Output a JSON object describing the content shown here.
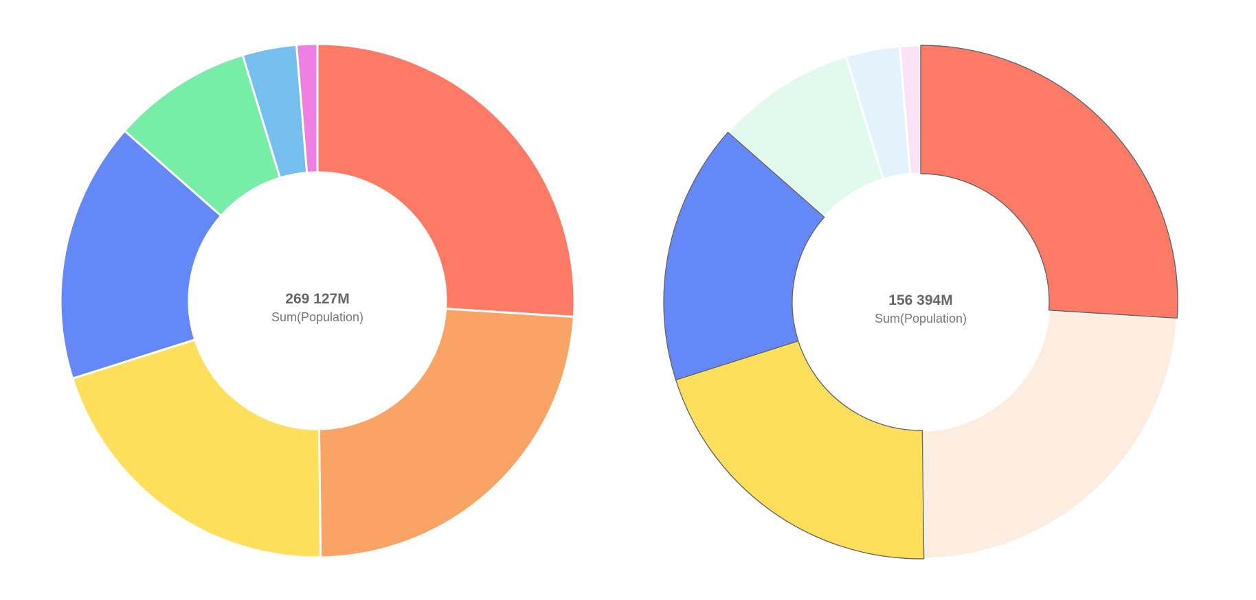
{
  "chart_data": [
    {
      "type": "pie",
      "variant": "donut",
      "center_total": "269 127M",
      "center_label": "Sum(Population)",
      "slices": [
        {
          "value": 26.0,
          "color": "#fd7a67",
          "highlighted": false
        },
        {
          "value": 23.8,
          "color": "#f9a465",
          "highlighted": false
        },
        {
          "value": 20.3,
          "color": "#fedf5c",
          "highlighted": false
        },
        {
          "value": 16.4,
          "color": "#6588f9",
          "highlighted": false
        },
        {
          "value": 8.8,
          "color": "#77eda8",
          "highlighted": false
        },
        {
          "value": 3.4,
          "color": "#75bfef",
          "highlighted": false
        },
        {
          "value": 1.3,
          "color": "#ef7fe3",
          "highlighted": false
        }
      ]
    },
    {
      "type": "pie",
      "variant": "donut",
      "center_total": "156 394M",
      "center_label": "Sum(Population)",
      "slices": [
        {
          "value": 26.0,
          "color": "#fd7a67",
          "highlighted": true
        },
        {
          "value": 23.8,
          "color": "#fdede1",
          "highlighted": false
        },
        {
          "value": 20.3,
          "color": "#fedf5c",
          "highlighted": true
        },
        {
          "value": 16.4,
          "color": "#6588f9",
          "highlighted": true
        },
        {
          "value": 8.8,
          "color": "#e2faee",
          "highlighted": false
        },
        {
          "value": 3.4,
          "color": "#e3f2fb",
          "highlighted": false
        },
        {
          "value": 1.3,
          "color": "#fbe3f6",
          "highlighted": false
        }
      ]
    }
  ]
}
